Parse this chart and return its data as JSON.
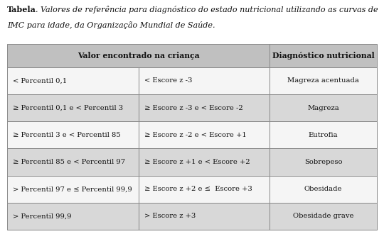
{
  "title_bold": "Tabela",
  "title_dot": ".",
  "title_italic": " Valores de referência para diagnóstico do estado nutricional utilizando as curvas de\nIMC para idade, da Organização Mundial de Saúde.",
  "header": [
    "Valor encontrado na criança",
    "Diagnóstico nutricional"
  ],
  "col1": [
    "< Percentil 0,1",
    "≥ Percentil 0,1 e < Percentil 3",
    "≥ Percentil 3 e < Percentil 85",
    "≥ Percentil 85 e < Percentil 97",
    "> Percentil 97 e ≤ Percentil 99,9",
    "> Percentil 99,9"
  ],
  "col2": [
    "< Escore z -3",
    "≥ Escore z -3 e < Escore -2",
    "≥ Escore z -2 e < Escore +1",
    "≥ Escore z +1 e < Escore +2",
    "≥ Escore z +2 e ≤  Escore +3",
    "> Escore z +3"
  ],
  "col3": [
    "Magreza acentuada",
    "Magreza",
    "Eutrofia",
    "Sobrepeso",
    "Obesidade",
    "Obesidade grave"
  ],
  "row_colors": [
    "#f5f5f5",
    "#d8d8d8",
    "#f5f5f5",
    "#d8d8d8",
    "#f5f5f5",
    "#d8d8d8"
  ],
  "header_bg": "#c0c0c0",
  "border_color": "#888888",
  "text_color": "#111111",
  "background": "#ffffff",
  "fig_width": 5.4,
  "fig_height": 3.3,
  "title_fontsize": 8.0,
  "header_fontsize": 7.8,
  "cell_fontsize": 7.2
}
